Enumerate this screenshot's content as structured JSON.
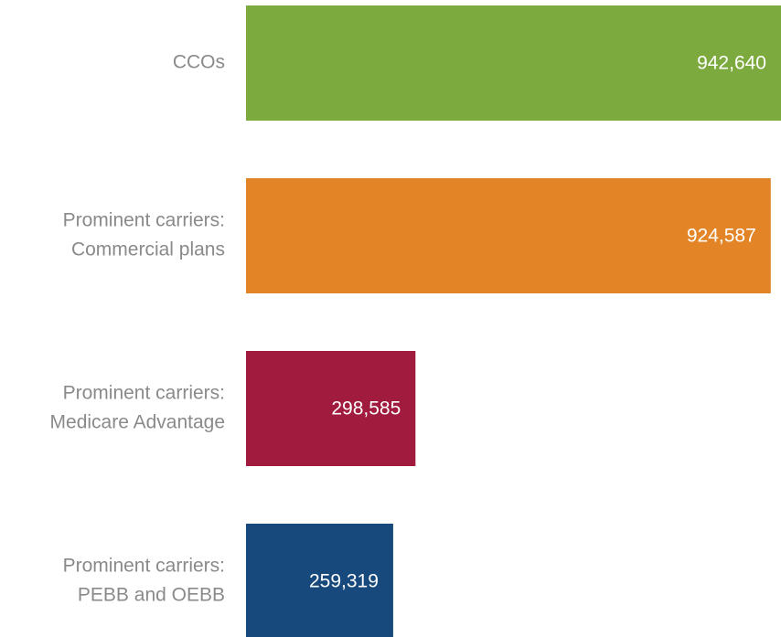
{
  "chart_data": {
    "type": "bar",
    "orientation": "horizontal",
    "categories": [
      [
        "CCOs"
      ],
      [
        "Prominent carriers:",
        "Commercial plans"
      ],
      [
        "Prominent carriers:",
        "Medicare Advantage"
      ],
      [
        "Prominent carriers:",
        "PEBB and OEBB"
      ]
    ],
    "values": [
      942640,
      924587,
      298585,
      259319
    ],
    "value_labels": [
      "942,640",
      "924,587",
      "298,585",
      "259,319"
    ],
    "colors": [
      "#7daa3f",
      "#e38426",
      "#a11b3e",
      "#17497c"
    ]
  }
}
